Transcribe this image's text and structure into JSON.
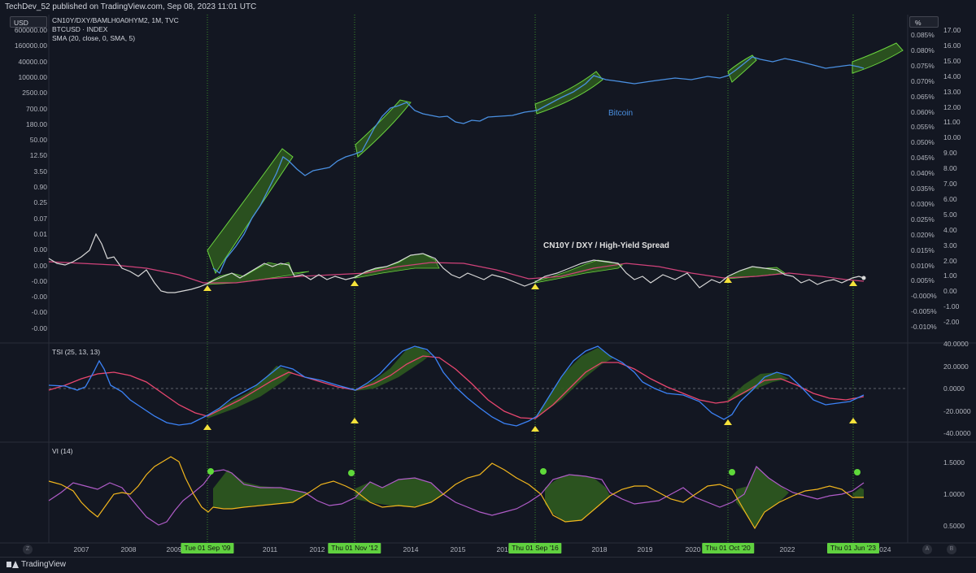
{
  "publish_bar": {
    "text": "TechDev_52 published on TradingView.com, Sep 08, 2023 11:01 UTC"
  },
  "main_pane": {
    "currency_label": "USD",
    "percent_label": "%",
    "legend": [
      "CN10Y/DXY/BAMLH0A0HYM2, 1M, TVC",
      "BTCUSD · INDEX",
      "SMA (20, close, 0, SMA, 5)"
    ],
    "left_axis_ticks": [
      "600000.00",
      "160000.00",
      "40000.00",
      "10000.00",
      "2500.00",
      "700.00",
      "180.00",
      "50.00",
      "12.50",
      "3.50",
      "0.90",
      "0.25",
      "0.07",
      "0.01",
      "0.00",
      "0.00",
      "-0.00",
      "-0.00",
      "-0.00",
      "-0.00"
    ],
    "pct_axis_ticks": [
      "0.085%",
      "0.080%",
      "0.075%",
      "0.070%",
      "0.065%",
      "0.060%",
      "0.055%",
      "0.050%",
      "0.045%",
      "0.040%",
      "0.035%",
      "0.030%",
      "0.025%",
      "0.020%",
      "0.015%",
      "0.010%",
      "0.005%",
      "-0.000%",
      "-0.005%",
      "-0.010%"
    ],
    "right_axis_ticks": [
      "17.00",
      "16.00",
      "15.00",
      "14.00",
      "13.00",
      "12.00",
      "11.00",
      "10.00",
      "9.00",
      "8.00",
      "7.00",
      "6.00",
      "5.00",
      "4.00",
      "3.00",
      "2.00",
      "1.00",
      "0.00",
      "-1.00",
      "-2.00"
    ],
    "annotation_bitcoin": "Bitcoin",
    "annotation_ratio": "CN10Y / DXY / High-Yield Spread"
  },
  "tsi_pane": {
    "label": "TSI (25, 13, 13)",
    "ticks": [
      "40.0000",
      "20.0000",
      "0.0000",
      "-20.0000",
      "-40.0000"
    ]
  },
  "vi_pane": {
    "label": "VI (14)",
    "ticks": [
      "1.5000",
      "1.0000",
      "0.5000"
    ]
  },
  "time_axis": {
    "years": [
      "2007",
      "2008",
      "2009",
      "2011",
      "2012",
      "2014",
      "2015",
      "2016",
      "2018",
      "2019",
      "2020",
      "2022",
      "2023",
      "2024"
    ],
    "date_tags": [
      "Tue 01 Sep '09",
      "Thu 01 Nov '12",
      "Thu 01 Sep '16",
      "Thu 01 Oct '20",
      "Thu 01 Jun '23"
    ]
  },
  "corner_buttons": {
    "left": "Z",
    "right": "A",
    "far_right": "B"
  },
  "footer": {
    "brand": "TradingView"
  },
  "colors": {
    "background": "#131722",
    "bitcoin_line": "#4a90e2",
    "ratio_line": "#d8d8d8",
    "sma_line": "#d0427a",
    "tsi_line": "#3b82f6",
    "tsi_signal": "#e8466f",
    "vi_plus": "#f2b61d",
    "vi_minus": "#b05cc8",
    "highlight_fill": "#2f5a1f",
    "highlight_stroke": "#6bd43f",
    "marker": "#f5e23a",
    "vline": "#3a7d2a"
  }
}
